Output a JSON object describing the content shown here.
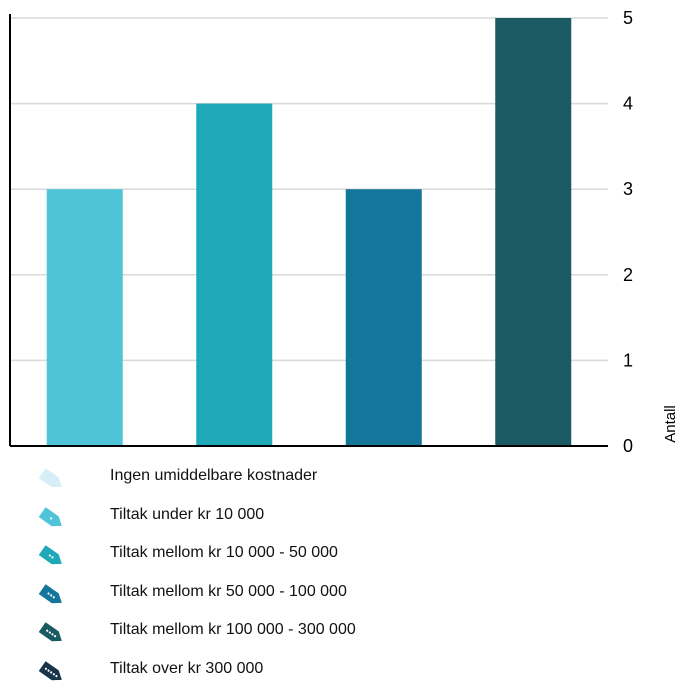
{
  "chart_data": {
    "type": "bar",
    "ylabel": "Antall",
    "ylim": [
      0,
      5
    ],
    "yticks": [
      0,
      1,
      2,
      3,
      4,
      5
    ],
    "yaxis_position": "right",
    "grid": true,
    "legend_position": "bottom",
    "series": [
      {
        "name": "Tiltak under kr 10 000",
        "color": "#4fc3d8",
        "value": 3
      },
      {
        "name": "Tiltak mellom kr 10 000 - 50 000",
        "color": "#1ea8b8",
        "value": 4
      },
      {
        "name": "Tiltak mellom kr 50 000 - 100 000",
        "color": "#14769a",
        "value": 3
      },
      {
        "name": "Tiltak mellom kr 100 000 - 300 000",
        "color": "#1a5a63",
        "value": 5
      }
    ]
  },
  "legend": [
    {
      "label": "Ingen umiddelbare kostnader",
      "color": "#d6eef6",
      "icon": "price-tag-icon",
      "dots": 0
    },
    {
      "label": "Tiltak under kr 10 000",
      "color": "#4fc3d8",
      "icon": "price-tag-icon",
      "dots": 1
    },
    {
      "label": "Tiltak mellom kr 10 000 - 50 000",
      "color": "#1ea8b8",
      "icon": "price-tag-icon",
      "dots": 2
    },
    {
      "label": "Tiltak mellom kr 50 000 - 100 000",
      "color": "#14769a",
      "icon": "price-tag-icon",
      "dots": 3
    },
    {
      "label": "Tiltak mellom kr 100 000 - 300 000",
      "color": "#1a5a63",
      "icon": "price-tag-icon",
      "dots": 4
    },
    {
      "label": "Tiltak over kr  300 000",
      "color": "#17344a",
      "icon": "price-tag-icon",
      "dots": 5
    }
  ]
}
